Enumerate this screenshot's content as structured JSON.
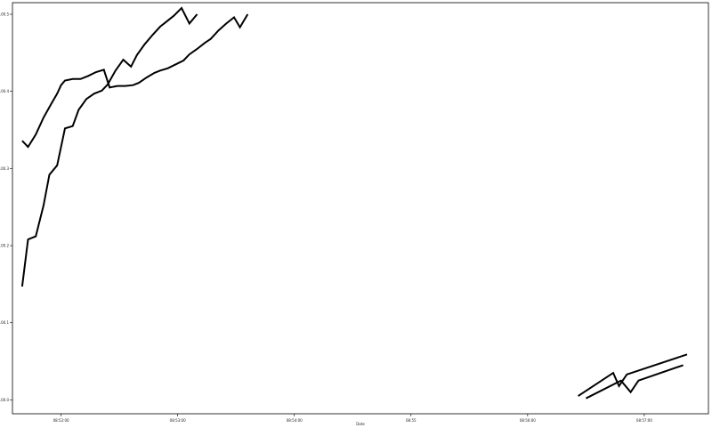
{
  "chart_data": {
    "type": "line",
    "title": "",
    "xlabel": "Date",
    "ylabel": "",
    "grid": false,
    "legend": "none",
    "line_color": "#000000",
    "x_ticks": [
      {
        "value": "08:52:00",
        "label": "08:52:00"
      },
      {
        "value": "08:53:00",
        "label": "08:53:00"
      },
      {
        "value": "08:54:00",
        "label": "08:54:00"
      },
      {
        "value": "08:55:00",
        "label": "08:55"
      },
      {
        "value": "08:56:00",
        "label": "08:56:00"
      },
      {
        "value": "08:57:00",
        "label": "08:57:00"
      }
    ],
    "y_ticks": [
      {
        "value": 100.0,
        "label": "100.0"
      },
      {
        "value": 100.1,
        "label": "100.1"
      },
      {
        "value": 100.2,
        "label": "100.2"
      },
      {
        "value": 100.3,
        "label": "100.3"
      },
      {
        "value": 100.4,
        "label": "100.4"
      },
      {
        "value": 100.5,
        "label": "100.5"
      }
    ],
    "xlim": [
      "08:51:35",
      "08:57:33"
    ],
    "ylim": [
      99.982,
      100.515
    ],
    "series": [
      {
        "points": [
          [
            "08:51:40",
            100.336
          ],
          [
            "08:51:43",
            100.328
          ],
          [
            "08:51:47",
            100.344
          ],
          [
            "08:51:51",
            100.366
          ],
          [
            "08:51:55",
            100.384
          ],
          [
            "08:51:58",
            100.397
          ],
          [
            "08:52:00",
            100.408
          ],
          [
            "08:52:02",
            100.414
          ],
          [
            "08:52:06",
            100.416
          ],
          [
            "08:52:10",
            100.416
          ],
          [
            "08:52:14",
            100.42
          ],
          [
            "08:52:18",
            100.425
          ],
          [
            "08:52:22",
            100.428
          ],
          [
            "08:52:25",
            100.405
          ],
          [
            "08:52:29",
            100.407
          ],
          [
            "08:52:33",
            100.407
          ],
          [
            "08:52:37",
            100.408
          ],
          [
            "08:52:40",
            100.411
          ],
          [
            "08:52:44",
            100.418
          ],
          [
            "08:52:48",
            100.424
          ],
          [
            "08:52:51",
            100.427
          ],
          [
            "08:52:55",
            100.43
          ],
          [
            "08:52:59",
            100.435
          ],
          [
            "08:53:03",
            100.44
          ],
          [
            "08:53:06",
            100.448
          ],
          [
            "08:53:10",
            100.455
          ],
          [
            "08:53:14",
            100.463
          ],
          [
            "08:53:17",
            100.468
          ],
          [
            "08:53:21",
            100.479
          ],
          [
            "08:53:25",
            100.488
          ],
          [
            "08:53:29",
            100.496
          ],
          [
            "08:53:32",
            100.483
          ],
          [
            "08:53:36",
            100.5
          ]
        ]
      },
      {
        "points": [
          [
            "08:51:40",
            100.147
          ],
          [
            "08:51:43",
            100.208
          ],
          [
            "08:51:47",
            100.212
          ],
          [
            "08:51:51",
            100.252
          ],
          [
            "08:51:54",
            100.292
          ],
          [
            "08:51:58",
            100.304
          ],
          [
            "08:52:02",
            100.352
          ],
          [
            "08:52:06",
            100.355
          ],
          [
            "08:52:09",
            100.376
          ],
          [
            "08:52:13",
            100.39
          ],
          [
            "08:52:17",
            100.397
          ],
          [
            "08:52:21",
            100.401
          ],
          [
            "08:52:24",
            100.409
          ],
          [
            "08:52:28",
            100.427
          ],
          [
            "08:52:32",
            100.441
          ],
          [
            "08:52:36",
            100.432
          ],
          [
            "08:52:39",
            100.447
          ],
          [
            "08:52:43",
            100.461
          ],
          [
            "08:52:47",
            100.473
          ],
          [
            "08:52:51",
            100.484
          ],
          [
            "08:52:54",
            100.49
          ],
          [
            "08:52:58",
            100.498
          ],
          [
            "08:53:02",
            100.508
          ],
          [
            "08:53:06",
            100.488
          ],
          [
            "08:53:10",
            100.5
          ]
        ]
      },
      {
        "points": [
          [
            "08:56:30",
            100.002
          ],
          [
            "08:56:48",
            100.025
          ],
          [
            "08:56:53",
            100.01
          ],
          [
            "08:56:57",
            100.025
          ],
          [
            "08:57:20",
            100.045
          ]
        ]
      },
      {
        "points": [
          [
            "08:56:26",
            100.005
          ],
          [
            "08:56:44",
            100.035
          ],
          [
            "08:56:47",
            100.018
          ],
          [
            "08:56:51",
            100.033
          ],
          [
            "08:57:22",
            100.059
          ]
        ]
      }
    ]
  }
}
